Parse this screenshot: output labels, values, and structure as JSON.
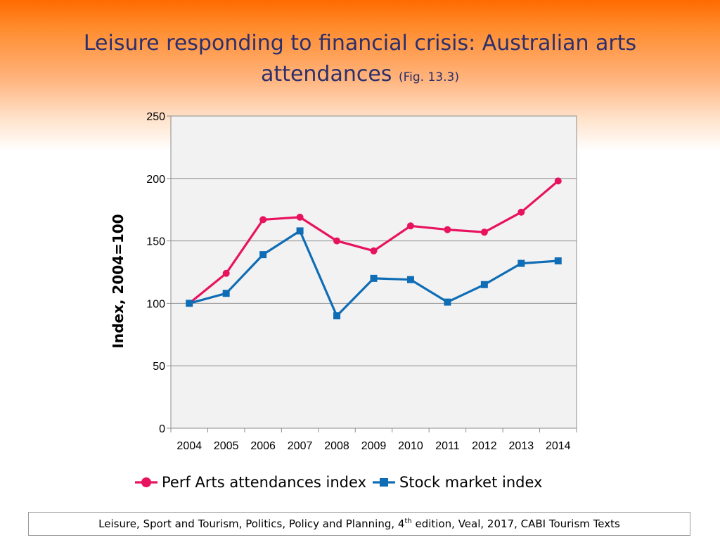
{
  "slide": {
    "title_main": "Leisure responding to financial crisis: Australian arts",
    "title_line2": "attendances",
    "title_fig": "(Fig. 13.3)",
    "footer_pre": "Leisure, Sport and Tourism, Politics, Policy and Planning, 4",
    "footer_sup": "th",
    "footer_post": " edition, Veal, 2017, CABI Tourism Texts"
  },
  "chart_data": {
    "type": "line",
    "categories": [
      "2004",
      "2005",
      "2006",
      "2007",
      "2008",
      "2009",
      "2010",
      "2011",
      "2012",
      "2013",
      "2014"
    ],
    "ylabel": "Index, 2004=100",
    "ylim": [
      0,
      250
    ],
    "yticks": [
      0,
      50,
      100,
      150,
      200,
      250
    ],
    "grid": true,
    "legend": "bottom",
    "series": [
      {
        "name": "Perf Arts attendances index",
        "color": "#e8135e",
        "marker": "circle",
        "values": [
          100,
          124,
          167,
          169,
          150,
          142,
          162,
          159,
          157,
          173,
          198
        ]
      },
      {
        "name": "Stock market index",
        "color": "#0f6db5",
        "marker": "square",
        "values": [
          100,
          108,
          139,
          158,
          90,
          120,
          119,
          101,
          115,
          132,
          134
        ]
      }
    ]
  }
}
